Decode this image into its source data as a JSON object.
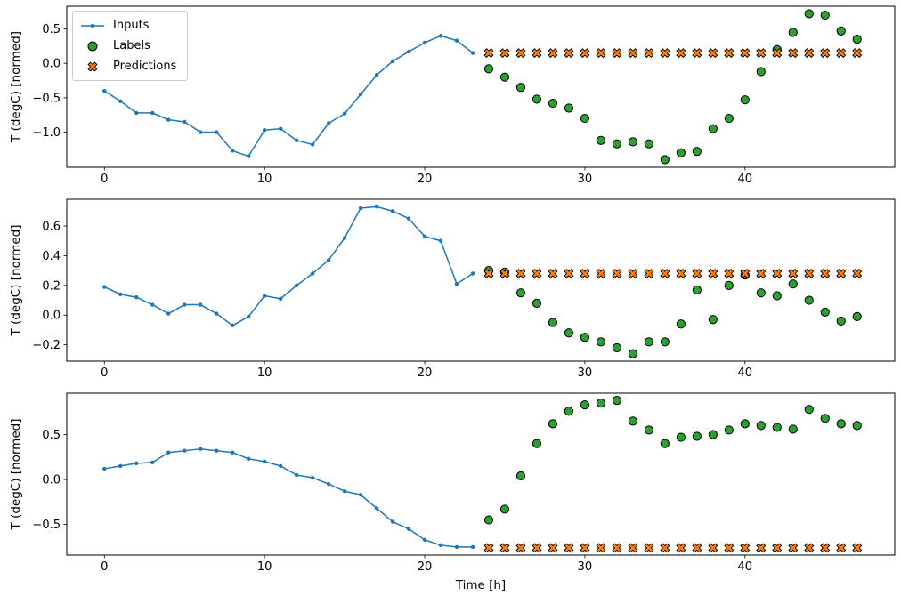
{
  "legend": {
    "position": "upper left",
    "items": [
      {
        "label": "Inputs"
      },
      {
        "label": "Labels"
      },
      {
        "label": "Predictions"
      }
    ]
  },
  "colors": {
    "inputs": "#1f77b4",
    "labels": "#2ca02c",
    "predictions": "#ff7f0e",
    "marker_edge": "#000000",
    "axis": "#000000",
    "background": "#ffffff"
  },
  "chart_data": [
    {
      "type": "line+scatter",
      "title": "",
      "xlabel": "",
      "ylabel": "T (degC) [normed]",
      "xlim": [
        -2.35,
        49.35
      ],
      "ylim": [
        -1.51,
        0.83
      ],
      "xticks": [
        0,
        10,
        20,
        30,
        40
      ],
      "yticks": [
        0.5,
        0.0,
        -0.5,
        -1.0
      ],
      "grid": false,
      "series": [
        {
          "name": "Inputs",
          "style": "line-dot",
          "color": "#1f77b4",
          "x": [
            0,
            1,
            2,
            3,
            4,
            5,
            6,
            7,
            8,
            9,
            10,
            11,
            12,
            13,
            14,
            15,
            16,
            17,
            18,
            19,
            20,
            21,
            22,
            23
          ],
          "y": [
            -0.4,
            -0.55,
            -0.72,
            -0.72,
            -0.82,
            -0.85,
            -1.0,
            -1.0,
            -1.27,
            -1.35,
            -0.97,
            -0.95,
            -1.12,
            -1.18,
            -0.87,
            -0.73,
            -0.45,
            -0.17,
            0.03,
            0.17,
            0.3,
            0.4,
            0.33,
            0.15
          ]
        },
        {
          "name": "Labels",
          "style": "circle",
          "color": "#2ca02c",
          "x": [
            24,
            25,
            26,
            27,
            28,
            29,
            30,
            31,
            32,
            33,
            34,
            35,
            36,
            37,
            38,
            39,
            40,
            41,
            42,
            43,
            44,
            45,
            46,
            47
          ],
          "y": [
            -0.08,
            -0.2,
            -0.35,
            -0.52,
            -0.58,
            -0.65,
            -0.8,
            -1.12,
            -1.17,
            -1.14,
            -1.17,
            -1.4,
            -1.3,
            -1.28,
            -0.95,
            -0.8,
            -0.53,
            -0.12,
            0.2,
            0.45,
            0.72,
            0.7,
            0.47,
            0.35
          ]
        },
        {
          "name": "Predictions",
          "style": "x",
          "color": "#ff7f0e",
          "x": [
            24,
            25,
            26,
            27,
            28,
            29,
            30,
            31,
            32,
            33,
            34,
            35,
            36,
            37,
            38,
            39,
            40,
            41,
            42,
            43,
            44,
            45,
            46,
            47
          ],
          "y": [
            0.15,
            0.15,
            0.15,
            0.15,
            0.15,
            0.15,
            0.15,
            0.15,
            0.15,
            0.15,
            0.15,
            0.15,
            0.15,
            0.15,
            0.15,
            0.15,
            0.15,
            0.15,
            0.15,
            0.15,
            0.15,
            0.15,
            0.15,
            0.15
          ]
        }
      ]
    },
    {
      "type": "line+scatter",
      "title": "",
      "xlabel": "",
      "ylabel": "T (degC) [normed]",
      "xlim": [
        -2.35,
        49.35
      ],
      "ylim": [
        -0.31,
        0.78
      ],
      "xticks": [
        0,
        10,
        20,
        30,
        40
      ],
      "yticks": [
        0.6,
        0.4,
        0.2,
        0.0,
        -0.2
      ],
      "grid": false,
      "series": [
        {
          "name": "Inputs",
          "style": "line-dot",
          "color": "#1f77b4",
          "x": [
            0,
            1,
            2,
            3,
            4,
            5,
            6,
            7,
            8,
            9,
            10,
            11,
            12,
            13,
            14,
            15,
            16,
            17,
            18,
            19,
            20,
            21,
            22,
            23
          ],
          "y": [
            0.19,
            0.14,
            0.12,
            0.07,
            0.01,
            0.07,
            0.07,
            0.01,
            -0.07,
            -0.01,
            0.13,
            0.11,
            0.2,
            0.28,
            0.37,
            0.52,
            0.72,
            0.73,
            0.7,
            0.65,
            0.53,
            0.5,
            0.21,
            0.28
          ]
        },
        {
          "name": "Labels",
          "style": "circle",
          "color": "#2ca02c",
          "x": [
            24,
            25,
            26,
            27,
            28,
            29,
            30,
            31,
            32,
            33,
            34,
            35,
            36,
            37,
            38,
            39,
            40,
            41,
            42,
            43,
            44,
            45,
            46,
            47
          ],
          "y": [
            0.3,
            0.29,
            0.15,
            0.08,
            -0.05,
            -0.12,
            -0.15,
            -0.18,
            -0.22,
            -0.26,
            -0.18,
            -0.18,
            -0.06,
            0.17,
            -0.03,
            0.2,
            0.27,
            0.15,
            0.13,
            0.21,
            0.1,
            0.02,
            -0.04,
            -0.01
          ]
        },
        {
          "name": "Predictions",
          "style": "x",
          "color": "#ff7f0e",
          "x": [
            24,
            25,
            26,
            27,
            28,
            29,
            30,
            31,
            32,
            33,
            34,
            35,
            36,
            37,
            38,
            39,
            40,
            41,
            42,
            43,
            44,
            45,
            46,
            47
          ],
          "y": [
            0.28,
            0.28,
            0.28,
            0.28,
            0.28,
            0.28,
            0.28,
            0.28,
            0.28,
            0.28,
            0.28,
            0.28,
            0.28,
            0.28,
            0.28,
            0.28,
            0.28,
            0.28,
            0.28,
            0.28,
            0.28,
            0.28,
            0.28,
            0.28
          ]
        }
      ]
    },
    {
      "type": "line+scatter",
      "title": "",
      "xlabel": "Time [h]",
      "ylabel": "T (degC) [normed]",
      "xlim": [
        -2.35,
        49.35
      ],
      "ylim": [
        -0.84,
        0.96
      ],
      "xticks": [
        0,
        10,
        20,
        30,
        40
      ],
      "yticks": [
        0.5,
        0.0,
        -0.5
      ],
      "grid": false,
      "series": [
        {
          "name": "Inputs",
          "style": "line-dot",
          "color": "#1f77b4",
          "x": [
            0,
            1,
            2,
            3,
            4,
            5,
            6,
            7,
            8,
            9,
            10,
            11,
            12,
            13,
            14,
            15,
            16,
            17,
            18,
            19,
            20,
            21,
            22,
            23
          ],
          "y": [
            0.12,
            0.15,
            0.18,
            0.19,
            0.3,
            0.32,
            0.34,
            0.32,
            0.3,
            0.23,
            0.2,
            0.15,
            0.05,
            0.02,
            -0.05,
            -0.13,
            -0.17,
            -0.32,
            -0.47,
            -0.55,
            -0.67,
            -0.73,
            -0.75,
            -0.75
          ]
        },
        {
          "name": "Labels",
          "style": "circle",
          "color": "#2ca02c",
          "x": [
            24,
            25,
            26,
            27,
            28,
            29,
            30,
            31,
            32,
            33,
            34,
            35,
            36,
            37,
            38,
            39,
            40,
            41,
            42,
            43,
            44,
            45,
            46,
            47
          ],
          "y": [
            -0.45,
            -0.33,
            0.04,
            0.4,
            0.62,
            0.76,
            0.83,
            0.85,
            0.88,
            0.65,
            0.55,
            0.4,
            0.47,
            0.48,
            0.5,
            0.55,
            0.62,
            0.6,
            0.58,
            0.56,
            0.78,
            0.68,
            0.62,
            0.6
          ]
        },
        {
          "name": "Predictions",
          "style": "x",
          "color": "#ff7f0e",
          "x": [
            24,
            25,
            26,
            27,
            28,
            29,
            30,
            31,
            32,
            33,
            34,
            35,
            36,
            37,
            38,
            39,
            40,
            41,
            42,
            43,
            44,
            45,
            46,
            47
          ],
          "y": [
            -0.76,
            -0.76,
            -0.76,
            -0.76,
            -0.76,
            -0.76,
            -0.76,
            -0.76,
            -0.76,
            -0.76,
            -0.76,
            -0.76,
            -0.76,
            -0.76,
            -0.76,
            -0.76,
            -0.76,
            -0.76,
            -0.76,
            -0.76,
            -0.76,
            -0.76,
            -0.76,
            -0.76
          ]
        }
      ]
    }
  ]
}
